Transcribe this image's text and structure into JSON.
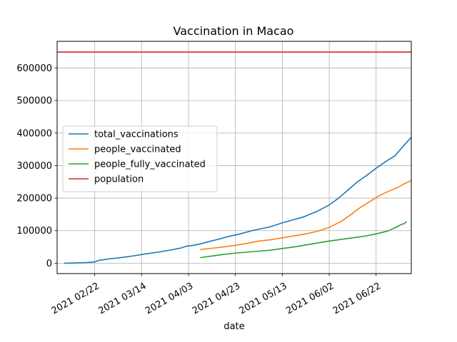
{
  "chart_data": {
    "type": "line",
    "title": "Vaccination in Macao",
    "xlabel": "date",
    "ylabel": "",
    "x_tick_labels": [
      "2021 02/22",
      "2021 03/14",
      "2021 04/03",
      "2021 04/23",
      "2021 05/13",
      "2021 06/02",
      "2021 06/22"
    ],
    "x_tick_dates": [
      "2021-02-22",
      "2021-03-14",
      "2021-04-03",
      "2021-04-23",
      "2021-05-13",
      "2021-06-02",
      "2021-06-22"
    ],
    "xlim": [
      "2021-02-06",
      "2021-07-07"
    ],
    "y_tick_values": [
      0,
      100000,
      200000,
      300000,
      400000,
      500000,
      600000
    ],
    "y_tick_labels": [
      "0",
      "100000",
      "200000",
      "300000",
      "400000",
      "500000",
      "600000"
    ],
    "ylim": [
      -32000,
      682000
    ],
    "grid": true,
    "legend_position": "center-left",
    "series": [
      {
        "name": "total_vaccinations",
        "color": "#1f77b4",
        "points": [
          [
            "2021-02-09",
            0
          ],
          [
            "2021-02-14",
            800
          ],
          [
            "2021-02-19",
            2000
          ],
          [
            "2021-02-22",
            4000
          ],
          [
            "2021-02-24",
            9000
          ],
          [
            "2021-03-01",
            14000
          ],
          [
            "2021-03-06",
            18000
          ],
          [
            "2021-03-11",
            23000
          ],
          [
            "2021-03-16",
            29000
          ],
          [
            "2021-03-21",
            34000
          ],
          [
            "2021-03-26",
            40000
          ],
          [
            "2021-03-31",
            47000
          ],
          [
            "2021-04-02",
            52000
          ],
          [
            "2021-04-05",
            55000
          ],
          [
            "2021-04-08",
            59000
          ],
          [
            "2021-04-12",
            67000
          ],
          [
            "2021-04-16",
            74000
          ],
          [
            "2021-04-20",
            82000
          ],
          [
            "2021-04-25",
            90000
          ],
          [
            "2021-04-30",
            100000
          ],
          [
            "2021-05-04",
            106000
          ],
          [
            "2021-05-08",
            112000
          ],
          [
            "2021-05-13",
            124000
          ],
          [
            "2021-05-18",
            134000
          ],
          [
            "2021-05-22",
            142000
          ],
          [
            "2021-05-28",
            160000
          ],
          [
            "2021-06-02",
            179000
          ],
          [
            "2021-06-06",
            200000
          ],
          [
            "2021-06-10",
            225000
          ],
          [
            "2021-06-14",
            250000
          ],
          [
            "2021-06-18",
            270000
          ],
          [
            "2021-06-22",
            292000
          ],
          [
            "2021-06-26",
            312000
          ],
          [
            "2021-06-30",
            330000
          ],
          [
            "2021-07-03",
            355000
          ],
          [
            "2021-07-07",
            387000
          ]
        ]
      },
      {
        "name": "people_vaccinated",
        "color": "#ff7f0e",
        "points": [
          [
            "2021-04-08",
            42000
          ],
          [
            "2021-04-13",
            46000
          ],
          [
            "2021-04-18",
            50000
          ],
          [
            "2021-04-23",
            55000
          ],
          [
            "2021-04-28",
            61000
          ],
          [
            "2021-05-03",
            68000
          ],
          [
            "2021-05-08",
            72000
          ],
          [
            "2021-05-13",
            78000
          ],
          [
            "2021-05-18",
            84000
          ],
          [
            "2021-05-23",
            90000
          ],
          [
            "2021-05-28",
            98000
          ],
          [
            "2021-06-02",
            110000
          ],
          [
            "2021-06-07",
            128000
          ],
          [
            "2021-06-11",
            148000
          ],
          [
            "2021-06-15",
            170000
          ],
          [
            "2021-06-19",
            188000
          ],
          [
            "2021-06-23",
            206000
          ],
          [
            "2021-06-27",
            220000
          ],
          [
            "2021-07-01",
            232000
          ],
          [
            "2021-07-04",
            244000
          ],
          [
            "2021-07-07",
            254000
          ]
        ]
      },
      {
        "name": "people_fully_vaccinated",
        "color": "#2ca02c",
        "points": [
          [
            "2021-04-08",
            17000
          ],
          [
            "2021-04-13",
            22000
          ],
          [
            "2021-04-18",
            27000
          ],
          [
            "2021-04-23",
            31000
          ],
          [
            "2021-04-28",
            34000
          ],
          [
            "2021-05-03",
            37000
          ],
          [
            "2021-05-08",
            40000
          ],
          [
            "2021-05-13",
            45000
          ],
          [
            "2021-05-18",
            50000
          ],
          [
            "2021-05-23",
            56000
          ],
          [
            "2021-05-28",
            62000
          ],
          [
            "2021-06-02",
            68000
          ],
          [
            "2021-06-07",
            73000
          ],
          [
            "2021-06-12",
            78000
          ],
          [
            "2021-06-17",
            83000
          ],
          [
            "2021-06-22",
            90000
          ],
          [
            "2021-06-27",
            99000
          ],
          [
            "2021-07-01",
            112000
          ],
          [
            "2021-07-03",
            120000
          ],
          [
            "2021-07-04",
            121000
          ],
          [
            "2021-07-05",
            128000
          ]
        ]
      },
      {
        "name": "population",
        "color": "#d62728",
        "points": [
          [
            "2021-02-06",
            649000
          ],
          [
            "2021-07-07",
            649000
          ]
        ]
      }
    ]
  }
}
